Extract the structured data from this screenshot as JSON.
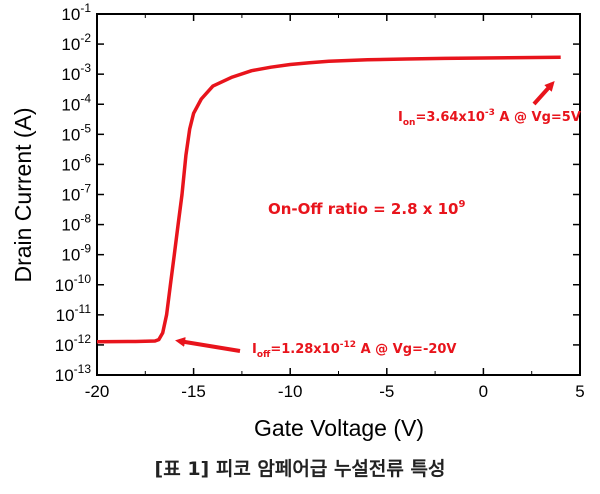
{
  "chart_data": {
    "type": "line",
    "xlabel": "Gate Voltage (V)",
    "ylabel": "Drain Current (A)",
    "xlim": [
      -20,
      5
    ],
    "ylim_log10": [
      -13,
      -1
    ],
    "y_scale": "log",
    "grid": false,
    "x_ticks": [
      -20,
      -15,
      -10,
      -5,
      0,
      5
    ],
    "y_tick_exponents": [
      -1,
      -2,
      -3,
      -4,
      -5,
      -6,
      -7,
      -8,
      -9,
      -10,
      -11,
      -12,
      -13
    ],
    "series": [
      {
        "color": "#e8141c",
        "x": [
          -20,
          -18,
          -17,
          -16.8,
          -16.6,
          -16.4,
          -16.2,
          -16,
          -15.8,
          -15.6,
          -15.4,
          -15.2,
          -15,
          -14.6,
          -14,
          -13,
          -12,
          -11,
          -10,
          -9,
          -8,
          -6,
          -4,
          -2,
          0,
          2,
          4
        ],
        "y": [
          1.28e-12,
          1.3e-12,
          1.35e-12,
          1.5e-12,
          2.5e-12,
          1e-11,
          1e-10,
          1e-09,
          1e-08,
          1e-07,
          2e-06,
          1.5e-05,
          5e-05,
          0.00015,
          0.0004,
          0.0008,
          0.0013,
          0.0017,
          0.0021,
          0.0024,
          0.0027,
          0.003,
          0.0032,
          0.00335,
          0.00345,
          0.00355,
          0.00364
        ]
      }
    ],
    "annotations": {
      "on_label": "3.64x10",
      "on_exp": "-3",
      "on_tail": " A @ Vg=5V",
      "off_label": "=1.28x10",
      "off_exp": "-12",
      "off_tail": " A @ Vg=-20V",
      "ratio_label": "On-Off ratio = 2.8 x 10",
      "ratio_exp": "9",
      "ion_prefix": "I",
      "ion_sub": "on",
      "ioff_prefix": "I",
      "ioff_sub": "off"
    }
  },
  "caption": "[표 1] 피코 암페어급 누설전류 특성"
}
